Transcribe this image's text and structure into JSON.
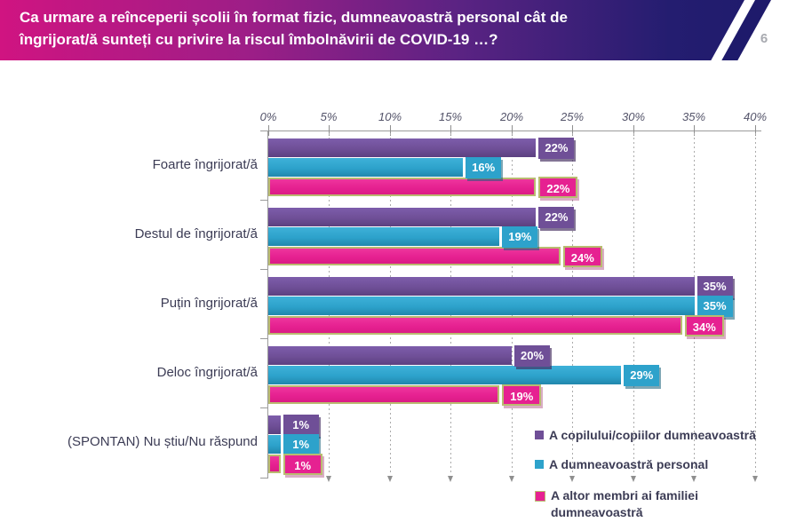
{
  "header": {
    "title_line1": "Ca urmare a reînceperii școlii în format fizic, dumneavoastră personal cât de",
    "title_line2": "îngrijorat/ă sunteți cu privire la riscul îmbolnăvirii de COVID-19 …?",
    "page_number": "6",
    "gradient_left": "#d01481",
    "gradient_right": "#1e1a6b",
    "stripe_color": "#1e1a6b",
    "title_color": "#ffffff",
    "page_number_color": "#a8aab0"
  },
  "chart_data": {
    "type": "bar",
    "orientation": "horizontal",
    "categories": [
      "Foarte îngrijorat/ă",
      "Destul de îngrijorat/ă",
      "Puțin îngrijorat/ă",
      "Deloc îngrijorat/ă",
      "(SPONTAN) Nu știu/Nu răspund"
    ],
    "series": [
      {
        "name": "A copilului/copiilor dumneavoastră",
        "color": "#6f4f97",
        "values": [
          22,
          22,
          35,
          20,
          1
        ]
      },
      {
        "name": "A dumneavoastră personal",
        "color": "#2da2cb",
        "values": [
          16,
          19,
          35,
          29,
          1
        ]
      },
      {
        "name": "A altor membri ai familiei dumneavoastră",
        "color": "#e62191",
        "border_color": "#b9bb70",
        "values": [
          22,
          24,
          34,
          19,
          1
        ]
      }
    ],
    "value_suffix": "%",
    "x_axis": {
      "min": 0,
      "max": 40,
      "step": 5,
      "ticks": [
        "0%",
        "5%",
        "10%",
        "15%",
        "20%",
        "25%",
        "30%",
        "35%",
        "40%"
      ],
      "tick_color": "#54546a"
    },
    "grid": "dashed-vertical-with-down-arrows",
    "legend_position": "bottom-right",
    "data_labels": "on-bar-end-boxes"
  }
}
